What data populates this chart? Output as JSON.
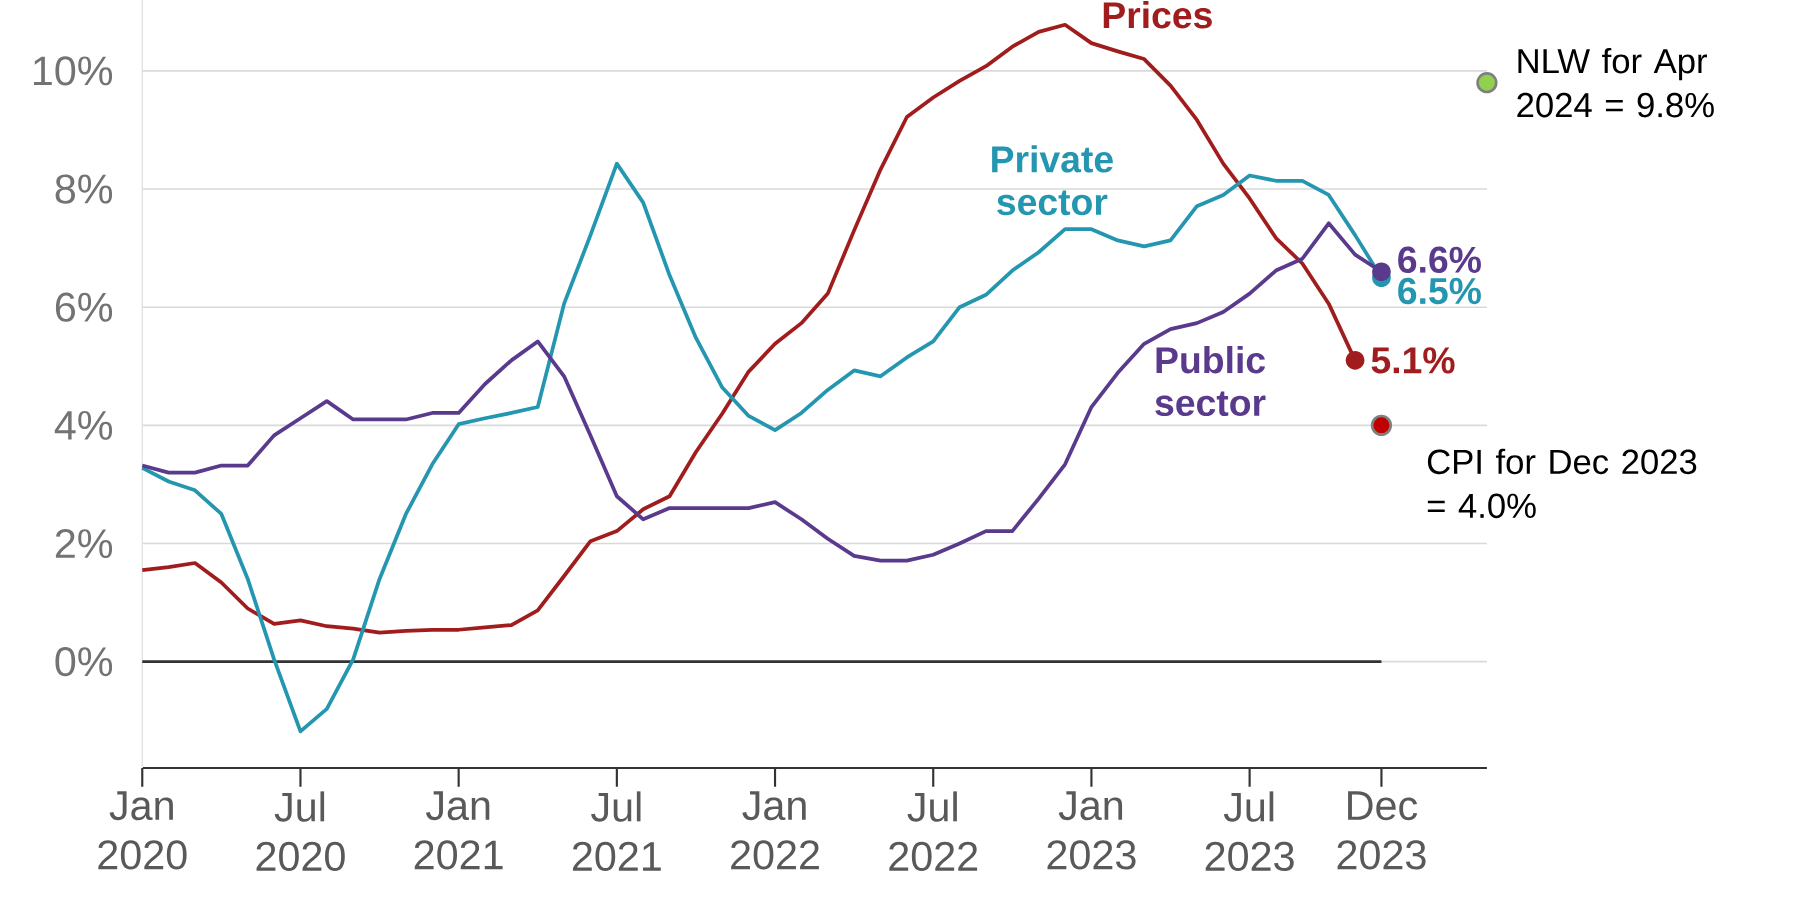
{
  "chart_data": {
    "type": "line",
    "x": [
      "2020-01",
      "2020-02",
      "2020-03",
      "2020-04",
      "2020-05",
      "2020-06",
      "2020-07",
      "2020-08",
      "2020-09",
      "2020-10",
      "2020-11",
      "2020-12",
      "2021-01",
      "2021-02",
      "2021-03",
      "2021-04",
      "2021-05",
      "2021-06",
      "2021-07",
      "2021-08",
      "2021-09",
      "2021-10",
      "2021-11",
      "2021-12",
      "2022-01",
      "2022-02",
      "2022-03",
      "2022-04",
      "2022-05",
      "2022-06",
      "2022-07",
      "2022-08",
      "2022-09",
      "2022-10",
      "2022-11",
      "2022-12",
      "2023-01",
      "2023-02",
      "2023-03",
      "2023-04",
      "2023-05",
      "2023-06",
      "2023-07",
      "2023-08",
      "2023-09",
      "2023-10",
      "2023-11",
      "2023-12"
    ],
    "series": [
      {
        "name": "Prices",
        "color": "#a11d1d",
        "values": [
          1.55,
          1.6,
          1.67,
          1.34,
          0.9,
          0.64,
          0.7,
          0.6,
          0.56,
          0.49,
          0.52,
          0.54,
          0.54,
          0.58,
          0.62,
          0.87,
          1.45,
          2.04,
          2.21,
          2.58,
          2.8,
          3.55,
          4.2,
          4.91,
          5.38,
          5.73,
          6.23,
          7.3,
          8.33,
          9.22,
          9.55,
          9.83,
          10.08,
          10.41,
          10.66,
          10.78,
          10.47,
          10.33,
          10.2,
          9.75,
          9.17,
          8.43,
          7.84,
          7.17,
          6.74,
          6.06,
          5.1,
          null
        ],
        "value_labels": [
          null,
          null,
          null,
          null,
          null,
          null,
          null,
          null,
          null,
          null,
          null,
          null,
          null,
          null,
          null,
          null,
          null,
          null,
          null,
          null,
          null,
          null,
          null,
          null,
          null,
          null,
          null,
          null,
          null,
          null,
          null,
          null,
          null,
          null,
          null,
          null,
          null,
          null,
          null,
          null,
          null,
          null,
          null,
          null,
          null,
          null,
          "5.1%",
          null
        ]
      },
      {
        "name": "Private sector",
        "color": "#2596b0",
        "values": [
          3.28,
          3.05,
          2.9,
          2.5,
          1.4,
          0.04,
          -1.18,
          -0.8,
          0.04,
          1.4,
          2.5,
          3.34,
          4.02,
          4.12,
          4.21,
          4.31,
          6.06,
          7.22,
          8.43,
          7.77,
          6.54,
          5.48,
          4.64,
          4.16,
          3.92,
          4.21,
          4.6,
          4.93,
          4.83,
          5.15,
          5.42,
          6.0,
          6.21,
          6.62,
          6.93,
          7.32,
          7.32,
          7.13,
          7.03,
          7.13,
          7.71,
          7.9,
          8.23,
          8.14,
          8.14,
          7.9,
          7.22,
          6.5
        ],
        "value_labels": [
          null,
          null,
          null,
          null,
          null,
          null,
          null,
          null,
          null,
          null,
          null,
          null,
          null,
          null,
          null,
          null,
          null,
          null,
          null,
          null,
          null,
          null,
          null,
          null,
          null,
          null,
          null,
          null,
          null,
          null,
          null,
          null,
          null,
          null,
          null,
          null,
          null,
          null,
          null,
          null,
          null,
          null,
          null,
          null,
          null,
          null,
          null,
          "6.5%"
        ]
      },
      {
        "name": "Public sector",
        "color": "#5a3a8c",
        "values": [
          3.32,
          3.2,
          3.2,
          3.32,
          3.32,
          3.83,
          4.12,
          4.41,
          4.1,
          4.1,
          4.1,
          4.21,
          4.21,
          4.7,
          5.1,
          5.42,
          4.83,
          3.83,
          2.8,
          2.41,
          2.6,
          2.6,
          2.6,
          2.6,
          2.7,
          2.41,
          2.08,
          1.79,
          1.71,
          1.71,
          1.81,
          2.0,
          2.21,
          2.21,
          2.76,
          3.34,
          4.31,
          4.89,
          5.38,
          5.63,
          5.73,
          5.92,
          6.23,
          6.62,
          6.82,
          7.42,
          6.89,
          6.6
        ],
        "value_labels": [
          null,
          null,
          null,
          null,
          null,
          null,
          null,
          null,
          null,
          null,
          null,
          null,
          null,
          null,
          null,
          null,
          null,
          null,
          null,
          null,
          null,
          null,
          null,
          null,
          null,
          null,
          null,
          null,
          null,
          null,
          null,
          null,
          null,
          null,
          null,
          null,
          null,
          null,
          null,
          null,
          null,
          null,
          null,
          null,
          null,
          null,
          null,
          "6.6%"
        ]
      },
      {
        "type": "scatter",
        "color": "#92d050",
        "x": [
          "2024-04"
        ],
        "values": [
          9.8
        ]
      },
      {
        "type": "scatter",
        "color": "#c00000",
        "x": [
          "2023-12"
        ],
        "values": [
          4.0
        ]
      }
    ],
    "annotations": [
      {
        "text": "NLW for Apr 2024 = 9.8%",
        "x": "2024-04",
        "y": 9.8
      },
      {
        "text": "CPI for Dec 2023 = 4.0%",
        "x": "2023-12",
        "y": 4.0
      }
    ],
    "xlim": [
      "2020-01",
      "2024-04"
    ],
    "xticks": [
      {
        "value": "2020-01",
        "label": "Jan 2020"
      },
      {
        "value": "2020-07",
        "label": "Jul 2020"
      },
      {
        "value": "2021-01",
        "label": "Jan 2021"
      },
      {
        "value": "2021-07",
        "label": "Jul 2021"
      },
      {
        "value": "2022-01",
        "label": "Jan 2022"
      },
      {
        "value": "2022-07",
        "label": "Jul 2022"
      },
      {
        "value": "2023-01",
        "label": "Jan 2023"
      },
      {
        "value": "2023-07",
        "label": "Jul 2023"
      },
      {
        "value": "2023-12",
        "label": "Dec 2023"
      }
    ],
    "ylim": [
      -1.8,
      11.2
    ],
    "yticks": [
      {
        "value": 0,
        "label": "0%"
      },
      {
        "value": 2,
        "label": "2%"
      },
      {
        "value": 4,
        "label": "4%"
      },
      {
        "value": 6,
        "label": "6%"
      },
      {
        "value": 8,
        "label": "8%"
      },
      {
        "value": 10,
        "label": "10%"
      }
    ],
    "grid": "y",
    "ref_lines": [
      {
        "axis": "y",
        "value": 0,
        "color": "#333333"
      }
    ]
  }
}
